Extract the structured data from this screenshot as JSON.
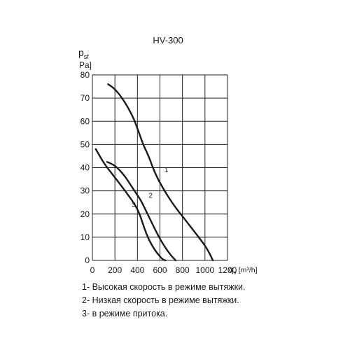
{
  "chart_data": {
    "type": "line",
    "title": "HV-300",
    "ylabel": "p_sf [Pa]",
    "xlabel": "q_v [m³/h]",
    "xlim": [
      0,
      1200
    ],
    "ylim": [
      0,
      80
    ],
    "xticks": [
      0,
      200,
      400,
      600,
      800,
      1000,
      1200
    ],
    "yticks": [
      0,
      10,
      20,
      30,
      40,
      50,
      60,
      70,
      80
    ],
    "grid": true,
    "series": [
      {
        "name": "1",
        "values": [
          [
            140,
            76
          ],
          [
            200,
            74
          ],
          [
            280,
            69
          ],
          [
            360,
            62
          ],
          [
            400,
            57
          ],
          [
            450,
            50
          ],
          [
            500,
            45
          ],
          [
            560,
            37
          ],
          [
            640,
            30
          ],
          [
            720,
            24
          ],
          [
            800,
            19
          ],
          [
            880,
            14
          ],
          [
            960,
            9
          ],
          [
            1020,
            5
          ],
          [
            1070,
            0
          ]
        ]
      },
      {
        "name": "2",
        "values": [
          [
            130,
            42.5
          ],
          [
            200,
            41
          ],
          [
            280,
            37
          ],
          [
            360,
            31
          ],
          [
            430,
            26
          ],
          [
            470,
            22
          ],
          [
            520,
            17
          ],
          [
            580,
            11
          ],
          [
            640,
            6
          ],
          [
            700,
            2
          ],
          [
            740,
            0
          ]
        ]
      },
      {
        "name": "3",
        "values": [
          [
            30,
            48
          ],
          [
            100,
            42
          ],
          [
            180,
            37
          ],
          [
            260,
            32
          ],
          [
            320,
            28
          ],
          [
            380,
            24
          ],
          [
            420,
            20
          ],
          [
            460,
            14
          ],
          [
            500,
            9
          ],
          [
            560,
            4
          ],
          [
            620,
            0.5
          ],
          [
            650,
            0
          ]
        ]
      }
    ],
    "curve_labels": [
      {
        "text": "1",
        "x": 640,
        "y": 38
      },
      {
        "text": "2",
        "x": 500,
        "y": 27
      },
      {
        "text": "3",
        "x": 350,
        "y": 23
      }
    ],
    "y_unit_top": "p",
    "y_unit_sub": "sf",
    "y_unit_bottom": "Pa]",
    "x_unit_main": "q",
    "x_unit_sub": "v",
    "x_unit_rest": "[m³/h]"
  },
  "legend": [
    "1- Высокая скорость в режиме вытяжки.",
    "2- Низкая скорость в режиме вытяжки.",
    "3- в режиме притока."
  ]
}
